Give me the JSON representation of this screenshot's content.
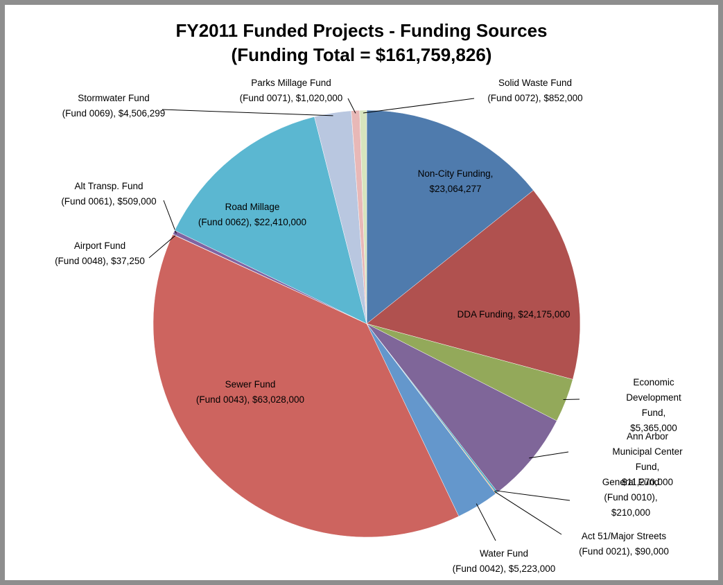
{
  "chart_data": {
    "type": "pie",
    "title": "FY2011 Funded Projects - Funding Sources",
    "subtitle": "(Funding Total = $161,759,826)",
    "categories": [
      "Non-City Funding,",
      "DDA Funding,",
      "Economic Development\nFund,",
      "Ann Arbor Municipal Center\nFund,",
      "General Fund\n(Fund 0010),",
      "Act 51/Major Streets\n(Fund 0021),",
      "Water Fund\n(Fund 0042),",
      "Sewer Fund\n(Fund 0043),",
      "Airport Fund\n(Fund 0048),",
      "Alt Transp. Fund\n(Fund 0061),",
      "Road Millage\n(Fund 0062),",
      "Stormwater Fund\n(Fund 0069),",
      "Parks Millage Fund\n(Fund 0071),",
      "Solid Waste Fund\n(Fund 0072),"
    ],
    "values": [
      23064277,
      24175000,
      5365000,
      11270000,
      210000,
      90000,
      5223000,
      63028000,
      37250,
      509000,
      22410000,
      4506299,
      1020000,
      852000
    ],
    "value_labels": [
      "$23,064,277",
      "$24,175,000",
      "$5,365,000",
      "$11,270,000",
      "$210,000",
      "$90,000",
      "$5,223,000",
      "$63,028,000",
      "$37,250",
      "$509,000",
      "$22,410,000",
      "$4,506,299",
      "$1,020,000",
      "$852,000"
    ],
    "colors": [
      "#4f7bad",
      "#b0514f",
      "#93a95a",
      "#7f6699",
      "#4aacc5",
      "#f79646",
      "#6497cc",
      "#cd645f",
      "#9c89b6",
      "#8064a2",
      "#5bb7d1",
      "#b9c7e0",
      "#e8b8b7",
      "#d7e4bd"
    ]
  }
}
